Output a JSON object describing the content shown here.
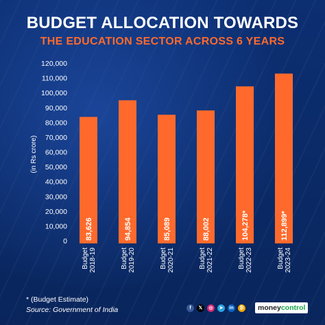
{
  "title_line1": "BUDGET ALLOCATION TOWARDS",
  "title_line2": "THE EDUCATION SECTOR ACROSS 6 YEARS",
  "footnote": "*  (Budget Estimate)",
  "source": "Source: Government of India",
  "brand": {
    "part1": "money",
    "part2": "control"
  },
  "social_icons": [
    {
      "name": "facebook-icon",
      "glyph": "f",
      "color": "#3b5998"
    },
    {
      "name": "x-icon",
      "glyph": "𝕏",
      "color": "#000000"
    },
    {
      "name": "instagram-icon",
      "glyph": "◎",
      "color": "#d62976"
    },
    {
      "name": "telegram-icon",
      "glyph": "➤",
      "color": "#2aa3de"
    },
    {
      "name": "linkedin-icon",
      "glyph": "in",
      "color": "#0a66c2"
    },
    {
      "name": "bitcoin-icon",
      "glyph": "₿",
      "color": "#f2a900"
    }
  ],
  "colors": {
    "bar": "#ff6a2c",
    "background": "#0b2c6b",
    "accent": "#ff6a2c",
    "text": "#ffffff"
  },
  "chart_data": {
    "type": "bar",
    "ylabel": "(in Rs crore)",
    "ylim": [
      0,
      120000
    ],
    "yticks": [
      0,
      10000,
      20000,
      30000,
      40000,
      50000,
      60000,
      70000,
      80000,
      90000,
      100000,
      110000,
      120000
    ],
    "ytick_labels": [
      "0",
      "10,000",
      "20,000",
      "30,000",
      "40,000",
      "50,000",
      "60,000",
      "70,000",
      "80,000",
      "90,000",
      "100,000",
      "110,000",
      "120,000"
    ],
    "categories": [
      [
        "Budget",
        "2018-19"
      ],
      [
        "Budget",
        "2019-20"
      ],
      [
        "Budget",
        "2020-21"
      ],
      [
        "Budget",
        "2021-22"
      ],
      [
        "Budget",
        "2022-23"
      ],
      [
        "Budget",
        "2023-24"
      ]
    ],
    "values": [
      83626,
      94854,
      85089,
      88002,
      104278,
      112899
    ],
    "value_labels": [
      "83,626",
      "94,854",
      "85,089",
      "88,002",
      "104,278*",
      "112,899*"
    ],
    "grid": false
  }
}
